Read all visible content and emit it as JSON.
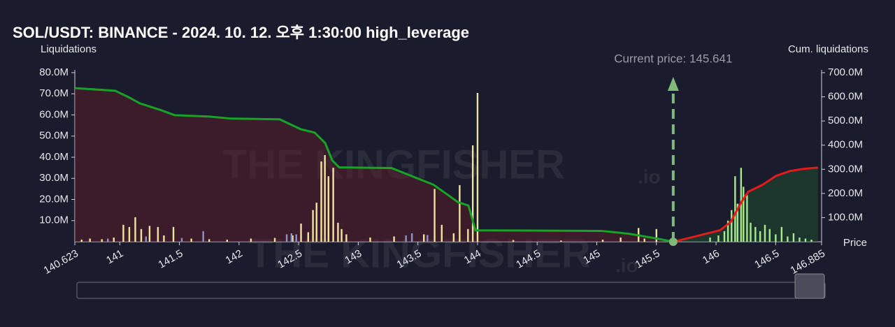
{
  "chart_data": {
    "type": "liquidation",
    "title": "SOL/USDT: BINANCE - 2024. 10. 12. 오후 1:30:00 high_leverage",
    "y_label": "Liquidations",
    "y2_label": "Cum. liquidations",
    "x_label": "Price",
    "annotation": "Current price: 145.641",
    "current_price": 145.641,
    "watermark": "THE KINGFISHER",
    "watermark_suffix": ".io",
    "xlim": [
      140.623,
      146.885
    ],
    "xticks": [
      140.623,
      141,
      141.5,
      142,
      142.5,
      143,
      143.5,
      144,
      144.5,
      145,
      145.5,
      146,
      146.5,
      146.885
    ],
    "ylim": [
      0,
      80000000
    ],
    "yticks": [
      {
        "value": 10000000,
        "label": "10.0M"
      },
      {
        "value": 20000000,
        "label": "20.0M"
      },
      {
        "value": 30000000,
        "label": "30.0M"
      },
      {
        "value": 40000000,
        "label": "40.0M"
      },
      {
        "value": 50000000,
        "label": "50.0M"
      },
      {
        "value": 60000000,
        "label": "60.0M"
      },
      {
        "value": 70000000,
        "label": "70.0M"
      },
      {
        "value": 80000000,
        "label": "80.0M"
      }
    ],
    "y2lim": [
      0,
      700000000
    ],
    "y2ticks": [
      {
        "value": 100000000,
        "label": "100.0M"
      },
      {
        "value": 200000000,
        "label": "200.0M"
      },
      {
        "value": 300000000,
        "label": "300.0M"
      },
      {
        "value": 400000000,
        "label": "400.0M"
      },
      {
        "value": 500000000,
        "label": "500.0M"
      },
      {
        "value": 600000000,
        "label": "600.0M"
      },
      {
        "value": 700000000,
        "label": "700.0M"
      }
    ],
    "bars": [
      {
        "color": "#efe3a2",
        "x": [
          140.68,
          140.75,
          140.85,
          140.95,
          141.03,
          141.08,
          141.13,
          141.18,
          141.25,
          141.32,
          141.37,
          141.45,
          141.6,
          141.75,
          141.9,
          142.1,
          142.3,
          142.45,
          142.52,
          142.58,
          142.62,
          142.65,
          142.69,
          142.72,
          142.75,
          142.79,
          142.83,
          142.86,
          142.9,
          143.1,
          143.3,
          143.55,
          143.64,
          143.7,
          143.8,
          143.85,
          143.92,
          143.96,
          144.0,
          144.3,
          144.7,
          145.05,
          145.2,
          145.35,
          145.4,
          145.5
        ],
        "values": [
          1000000,
          1500000,
          1200000,
          2000000,
          8000000,
          7000000,
          11600000,
          6000000,
          7500000,
          7000000,
          3000000,
          7000000,
          1500000,
          1200000,
          1000000,
          1500000,
          1800000,
          3000000,
          8600000,
          4500000,
          15000000,
          18500000,
          38000000,
          41000000,
          31000000,
          35000000,
          9000000,
          6000000,
          3500000,
          2000000,
          2500000,
          3500000,
          25000000,
          8000000,
          4000000,
          26800000,
          6000000,
          45600000,
          70400000,
          800000,
          600000,
          1000000,
          2000000,
          6500000,
          1500000,
          6000000
        ]
      },
      {
        "color": "#8d93c4",
        "x": [
          140.9,
          141.22,
          141.52,
          141.7,
          142.4,
          142.44,
          142.48,
          143.4,
          143.45,
          143.58
        ],
        "values": [
          1500000,
          2500000,
          1800000,
          5000000,
          3500000,
          4000000,
          3500000,
          3000000,
          4000000,
          3200000
        ]
      },
      {
        "color": "#a8e88f",
        "x": [
          145.95,
          146.02,
          146.07,
          146.1,
          146.13,
          146.16,
          146.18,
          146.21,
          146.23,
          146.26,
          146.29,
          146.33,
          146.37,
          146.41,
          146.45,
          146.5,
          146.55,
          146.6,
          146.65,
          146.7,
          146.75,
          146.8
        ],
        "values": [
          2000000,
          3000000,
          5000000,
          10000000,
          15000000,
          31000000,
          18000000,
          35000000,
          26000000,
          22000000,
          9000000,
          7000000,
          5000000,
          8000000,
          6000000,
          3500000,
          7000000,
          2500000,
          4000000,
          2000000,
          1500000,
          1000000
        ]
      }
    ],
    "series": [
      {
        "color": "#17a325",
        "fill": "#5a1e2c",
        "axis": "y2",
        "x": [
          140.623,
          140.963,
          141.08,
          141.168,
          141.344,
          141.461,
          141.755,
          141.93,
          142.341,
          142.517,
          142.634,
          142.722,
          142.781,
          142.84,
          143.279,
          143.631,
          143.836,
          143.924,
          143.982,
          144.1,
          145.038,
          145.273,
          145.507,
          145.641
        ],
        "values": [
          636000000,
          625000000,
          597000000,
          573000000,
          545000000,
          524000000,
          518000000,
          510000000,
          507000000,
          466000000,
          452000000,
          409000000,
          337000000,
          308000000,
          305000000,
          236000000,
          164000000,
          150000000,
          47000000,
          47000000,
          45000000,
          33000000,
          13000000,
          0
        ]
      },
      {
        "color": "#e41b1b",
        "fill": "#1f4a30",
        "axis": "y2",
        "x": [
          145.641,
          145.8,
          146.035,
          146.123,
          146.211,
          146.27,
          146.387,
          146.504,
          146.621,
          146.738,
          146.855
        ],
        "values": [
          0,
          19000000,
          48000000,
          82000000,
          163000000,
          207000000,
          235000000,
          273000000,
          293000000,
          302000000,
          307000000
        ]
      }
    ]
  }
}
